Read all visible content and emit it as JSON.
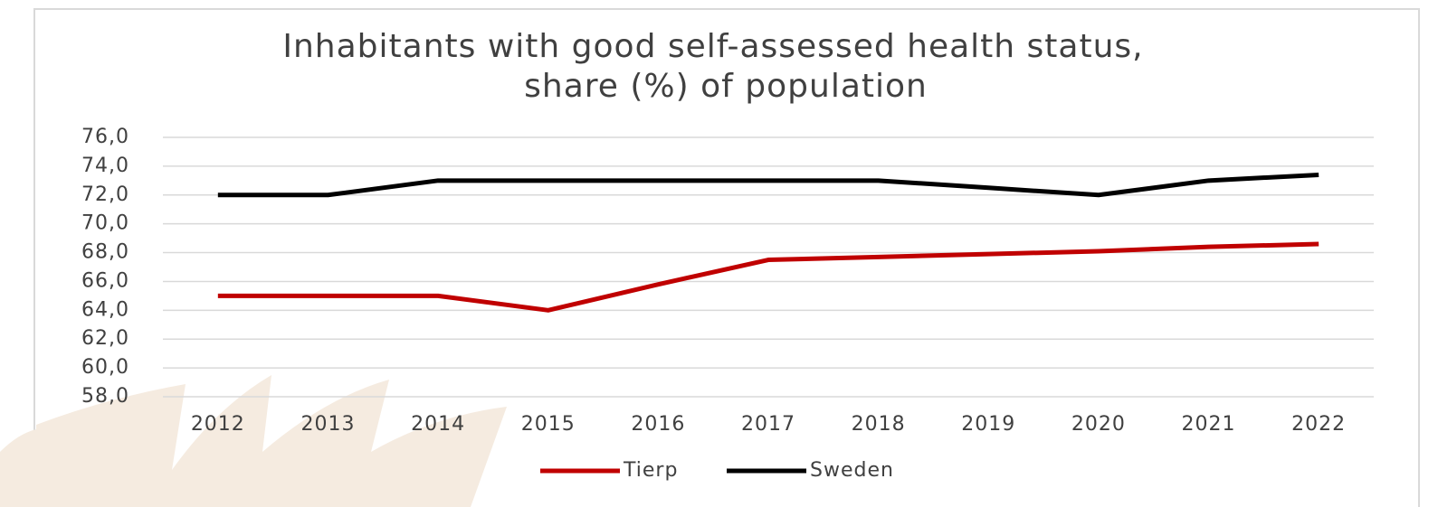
{
  "chart_data": {
    "type": "line",
    "title": [
      "Inhabitants with good self-assessed health status,",
      "share (%) of population"
    ],
    "categories": [
      "2012",
      "2013",
      "2014",
      "2015",
      "2016",
      "2017",
      "2018",
      "2019",
      "2020",
      "2021",
      "2022"
    ],
    "series": [
      {
        "name": "Tierp",
        "color": "#c00000",
        "values": [
          65,
          65,
          65,
          64,
          65.8,
          67.5,
          67.7,
          67.9,
          68.1,
          68.4,
          68.6
        ]
      },
      {
        "name": "Sweden",
        "color": "#000000",
        "values": [
          72,
          72,
          73,
          73,
          73,
          73,
          73,
          72.5,
          72,
          73,
          73.4
        ]
      }
    ],
    "ylim": [
      58,
      76
    ],
    "yticks": [
      {
        "value": 58,
        "label": "58,0"
      },
      {
        "value": 60,
        "label": "60,0"
      },
      {
        "value": 62,
        "label": "62,0"
      },
      {
        "value": 64,
        "label": "64,0"
      },
      {
        "value": 66,
        "label": "66,0"
      },
      {
        "value": 68,
        "label": "68,0"
      },
      {
        "value": 70,
        "label": "70,0"
      },
      {
        "value": 72,
        "label": "72,0"
      },
      {
        "value": 74,
        "label": "74,0"
      },
      {
        "value": 76,
        "label": "76,0"
      }
    ],
    "grid": true,
    "legend": "bottom"
  }
}
